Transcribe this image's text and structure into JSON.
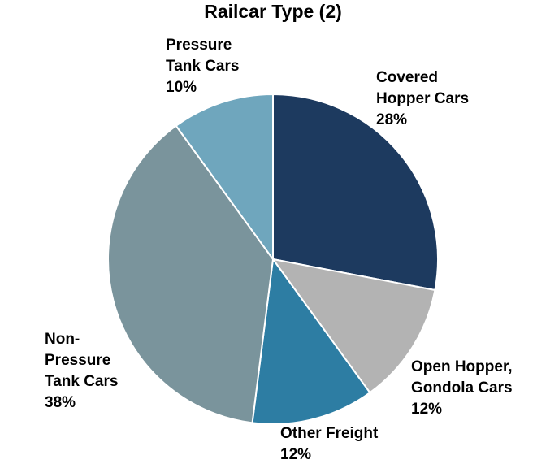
{
  "chart_data": {
    "type": "pie",
    "title": "Railcar Type (2)",
    "start_angle_deg": 0,
    "direction": "clockwise",
    "slices": [
      {
        "name_lines": [
          "Covered",
          "Hopper Cars"
        ],
        "value": 28,
        "value_label": "28%",
        "color": "#1d3a5f"
      },
      {
        "name_lines": [
          "Open Hopper,",
          "Gondola Cars"
        ],
        "value": 12,
        "value_label": "12%",
        "color": "#b3b3b3"
      },
      {
        "name_lines": [
          "Other Freight"
        ],
        "value": 12,
        "value_label": "12%",
        "color": "#2d7da3"
      },
      {
        "name_lines": [
          "Non-",
          "Pressure",
          "Tank Cars"
        ],
        "value": 38,
        "value_label": "38%",
        "color": "#7a949c"
      },
      {
        "name_lines": [
          "Pressure",
          "Tank Cars"
        ],
        "value": 10,
        "value_label": "10%",
        "color": "#6fa6bd"
      }
    ]
  }
}
